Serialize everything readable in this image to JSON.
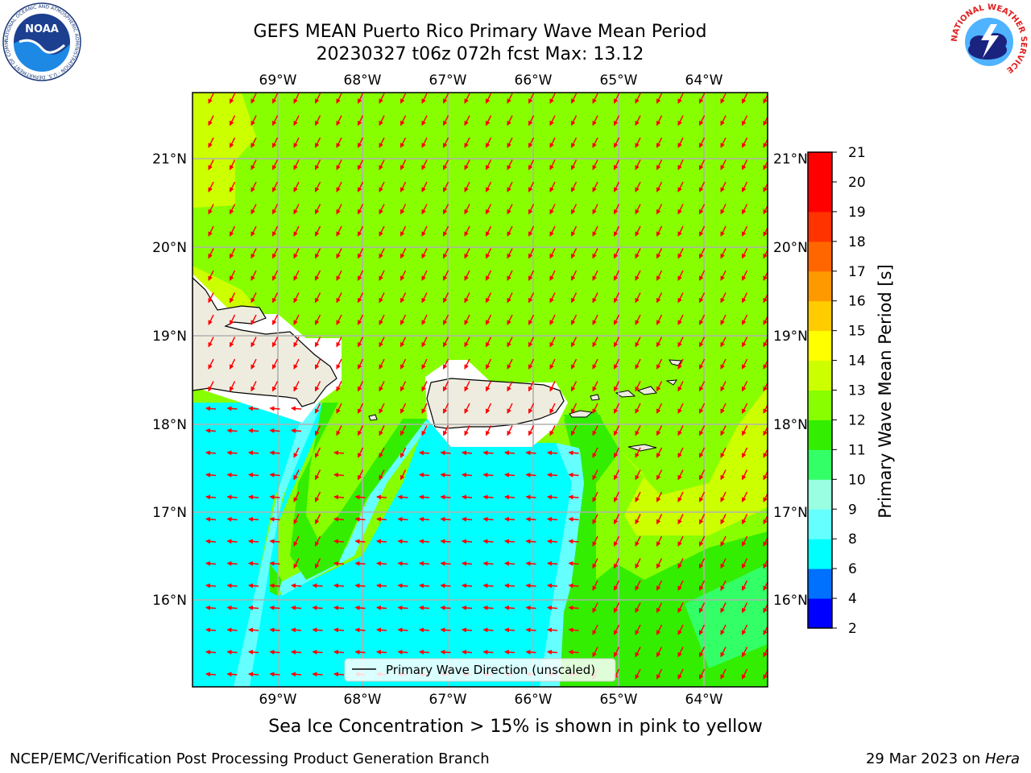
{
  "header": {
    "title_line1": "GEFS MEAN Puerto Rico Primary Wave Mean Period",
    "title_line2": "20230327 t06z 072h fcst   Max: 13.12"
  },
  "logos": {
    "noaa_text": "NOAA",
    "noaa_ring_text": "NATIONAL OCEANIC AND ATMOSPHERIC ADMINISTRATION · U.S. DEPARTMENT OF COMMERCE",
    "nws_ring_text": "NATIONAL WEATHER SERVICE"
  },
  "map": {
    "lon_ticks": [
      "69°W",
      "68°W",
      "67°W",
      "66°W",
      "65°W",
      "64°W"
    ],
    "lat_ticks": [
      "21°N",
      "20°N",
      "19°N",
      "18°N",
      "17°N",
      "16°N"
    ],
    "legend_label": "Primary Wave Direction (unscaled)",
    "colors": {
      "land": "#eeecdf",
      "arrow": "#ff0000",
      "grid": "#b0b0b0"
    }
  },
  "colorbar": {
    "label": "Primary Wave Mean Period [s]",
    "ticks": [
      "2",
      "4",
      "6",
      "8",
      "9",
      "10",
      "11",
      "12",
      "13",
      "14",
      "15",
      "16",
      "17",
      "18",
      "19",
      "20",
      "21"
    ],
    "colors": [
      "#0000ff",
      "#0070ff",
      "#00ffff",
      "#66ffff",
      "#99ffe0",
      "#33ff66",
      "#33ee00",
      "#88ff00",
      "#ccff00",
      "#ffff00",
      "#ffcc00",
      "#ff9900",
      "#ff6600",
      "#ff3300",
      "#ff0000",
      "#ff0000"
    ]
  },
  "subnote": "Sea Ice Concentration > 15% is shown in pink to yellow",
  "footer": {
    "left": "NCEP/EMC/Verification Post Processing Product Generation Branch",
    "date": "29 Mar 2023 on ",
    "host": "Hera"
  }
}
